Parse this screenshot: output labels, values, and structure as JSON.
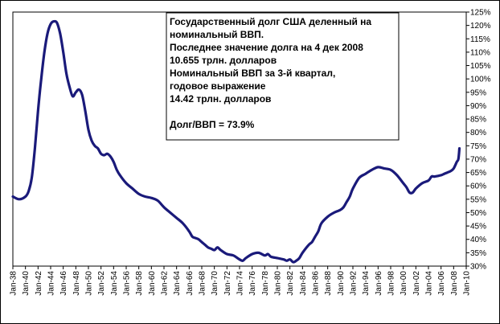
{
  "chart_data": {
    "type": "line",
    "title": "",
    "xlabel": "",
    "ylabel": "",
    "ylim": [
      30,
      125
    ],
    "y_unit": "%",
    "grid": false,
    "y_axis_side": "right",
    "x_tick_labels": [
      "Jan-38",
      "Jan-40",
      "Jan-42",
      "Jan-44",
      "Jan-46",
      "Jan-48",
      "Jan-50",
      "Jan-52",
      "Jan-54",
      "Jan-56",
      "Jan-58",
      "Jan-60",
      "Jan-62",
      "Jan-64",
      "Jan-66",
      "Jan-68",
      "Jan-70",
      "Jan-72",
      "Jan-74",
      "Jan-76",
      "Jan-78",
      "Jan-80",
      "Jan-82",
      "Jan-84",
      "Jan-86",
      "Jan-88",
      "Jan-90",
      "Jan-92",
      "Jan-94",
      "Jan-96",
      "Jan-98",
      "Jan-00",
      "Jan-02",
      "Jan-04",
      "Jan-06",
      "Jan-08",
      "Jan-10"
    ],
    "y_tick_labels": [
      "30%",
      "35%",
      "40%",
      "45%",
      "50%",
      "55%",
      "60%",
      "65%",
      "70%",
      "75%",
      "80%",
      "85%",
      "90%",
      "95%",
      "100%",
      "105%",
      "110%",
      "115%",
      "120%",
      "125%"
    ],
    "annotation": {
      "lines": [
        "Государственный долг США деленный на",
        "номинальный ВВП.",
        "Последнее значение долга на 4 дек 2008",
        "10.655 трлн. долларов",
        "Номинальный ВВП за 3-й квартал,",
        "годовое выражение",
        "14.42 трлн. долларов",
        "",
        "Долг/ВВП = 73.9%"
      ]
    },
    "line_color": "#1a1a7a",
    "series": [
      {
        "x": [
          "1938-01",
          "1939-01",
          "1940-01",
          "1940-07",
          "1941-01",
          "1941-07",
          "1942-01",
          "1942-07",
          "1943-01",
          "1943-07",
          "1944-01",
          "1944-07",
          "1945-01",
          "1945-07",
          "1946-01",
          "1946-07",
          "1947-01",
          "1947-07",
          "1948-01",
          "1948-07",
          "1949-01",
          "1949-07",
          "1950-01",
          "1950-07",
          "1951-01",
          "1951-07",
          "1952-01",
          "1952-07",
          "1953-01",
          "1953-07",
          "1954-01",
          "1954-07",
          "1955-01",
          "1956-01",
          "1957-01",
          "1958-01",
          "1959-01",
          "1960-01",
          "1961-01",
          "1962-01",
          "1963-01",
          "1964-01",
          "1965-01",
          "1966-01",
          "1966-07",
          "1967-01",
          "1967-07",
          "1968-01",
          "1968-07",
          "1969-01",
          "1969-07",
          "1970-01",
          "1970-07",
          "1971-01",
          "1972-01",
          "1973-01",
          "1974-01",
          "1974-07",
          "1975-01",
          "1976-01",
          "1977-01",
          "1978-01",
          "1978-07",
          "1979-01",
          "1980-01",
          "1981-01",
          "1981-07",
          "1982-01",
          "1982-07",
          "1983-01",
          "1983-07",
          "1984-01",
          "1985-01",
          "1985-07",
          "1986-01",
          "1986-07",
          "1987-01",
          "1988-01",
          "1989-01",
          "1990-01",
          "1990-07",
          "1991-01",
          "1991-07",
          "1992-01",
          "1993-01",
          "1994-01",
          "1995-01",
          "1996-01",
          "1997-01",
          "1998-01",
          "1999-01",
          "2000-01",
          "2000-07",
          "2001-01",
          "2001-07",
          "2002-01",
          "2003-01",
          "2004-01",
          "2004-07",
          "2005-01",
          "2006-01",
          "2006-07",
          "2007-01",
          "2007-07",
          "2008-01",
          "2008-07",
          "2008-10",
          "2008-12"
        ],
        "values": [
          56,
          55,
          56,
          58,
          63,
          74,
          88,
          100,
          110,
          117,
          120.5,
          121.5,
          121,
          117,
          110,
          102,
          97,
          93.5,
          95,
          96,
          94,
          88,
          81,
          77,
          75,
          74,
          72,
          71.5,
          72,
          71,
          69,
          66,
          64,
          61,
          59,
          57,
          56,
          55.5,
          54.5,
          52,
          50,
          48,
          46,
          43,
          41,
          40.5,
          40,
          39,
          38,
          37,
          36.5,
          36,
          37,
          36,
          34.5,
          34,
          32.5,
          32,
          33,
          34.5,
          35,
          34,
          34.5,
          33.5,
          33,
          32.5,
          32,
          32.5,
          31.5,
          32,
          33,
          35,
          38,
          39,
          41,
          43,
          46,
          48.5,
          50,
          51,
          52,
          54,
          56,
          59,
          63,
          64.5,
          66,
          67,
          66.5,
          66,
          64,
          61,
          59.5,
          57.5,
          57.5,
          59,
          61,
          62,
          63.5,
          63.5,
          64,
          64.5,
          65,
          65.5,
          66.5,
          69,
          70,
          74
        ]
      }
    ]
  }
}
